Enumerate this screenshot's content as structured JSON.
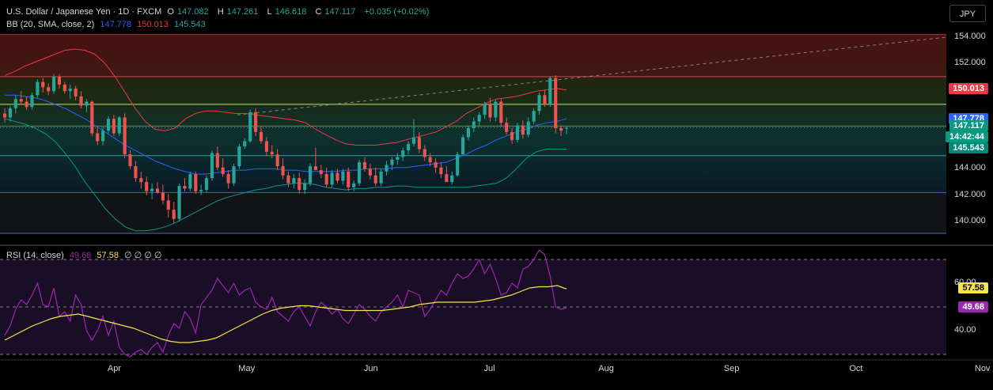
{
  "header": {
    "title": "U.S. Dollar / Japanese Yen · 1D · FXCM",
    "open_label": "O",
    "open": "147.082",
    "high_label": "H",
    "high": "147.261",
    "low_label": "L",
    "low": "146.618",
    "close_label": "C",
    "close": "147.117",
    "change": "+0.035 (+0.02%)",
    "bb_label": "BB (20, SMA, close, 2)",
    "bb_basis": "147.778",
    "bb_upper": "150.013",
    "bb_lower": "145.543",
    "rsi_label": "RSI (14, close)",
    "rsi_value": "49.68",
    "rsi_ma": "57.58",
    "rsi_extra": "∅ ∅ ∅ ∅"
  },
  "currency_button": "JPY",
  "price_axis": {
    "ticks": [
      "154.000",
      "152.000",
      "150.000",
      "144.000",
      "142.000",
      "140.000"
    ],
    "tick_values": [
      154,
      152,
      150,
      144,
      142,
      140
    ],
    "badges": {
      "upper": {
        "text": "150.013",
        "color": "#f23645"
      },
      "basis": {
        "text": "147.778",
        "color": "#2962ff"
      },
      "close": {
        "text": "147.117",
        "color": "#089981"
      },
      "countdown": {
        "text": "14:42:44",
        "color": "#089981"
      },
      "lower": {
        "text": "145.543",
        "color": "#00897b"
      }
    }
  },
  "rsi_axis": {
    "ticks": [
      "60.00",
      "40.00"
    ],
    "tick_values": [
      60,
      40
    ],
    "badges": {
      "ma": {
        "text": "57.58",
        "color": "#f7e34b"
      },
      "rsi": {
        "text": "49.68",
        "color": "#9c27b0"
      }
    }
  },
  "time_axis": {
    "labels": [
      "Apr",
      "May",
      "Jun",
      "Jul",
      "Aug",
      "Sep",
      "Oct",
      "Nov"
    ]
  },
  "chart_data": [
    {
      "type": "candlestick",
      "title": "U.S. Dollar / Japanese Yen · 1D · FXCM",
      "ylim": [
        138.5,
        154.6
      ],
      "colors": {
        "up": "#26a69a",
        "down": "#ef5350",
        "bb_upper": "#f23645",
        "bb_basis": "#2962ff",
        "bb_lower": "#089981"
      },
      "candles_ohlc": [
        [
          148.2,
          148.6,
          147.5,
          147.9
        ],
        [
          147.9,
          148.8,
          147.6,
          148.6
        ],
        [
          148.6,
          149.6,
          148.2,
          149.3
        ],
        [
          149.3,
          149.9,
          148.9,
          149.1
        ],
        [
          149.1,
          149.5,
          148.5,
          148.7
        ],
        [
          148.7,
          149.8,
          148.5,
          149.6
        ],
        [
          149.6,
          150.8,
          149.4,
          150.6
        ],
        [
          150.6,
          150.9,
          149.8,
          150.2
        ],
        [
          150.2,
          150.5,
          149.6,
          149.9
        ],
        [
          149.9,
          151.2,
          149.7,
          151.0
        ],
        [
          151.0,
          151.2,
          150.1,
          150.4
        ],
        [
          150.4,
          150.6,
          149.7,
          149.9
        ],
        [
          149.9,
          150.4,
          149.3,
          150.1
        ],
        [
          150.1,
          150.3,
          149.2,
          149.5
        ],
        [
          149.5,
          149.9,
          148.6,
          148.8
        ],
        [
          148.8,
          149.3,
          148.3,
          149.1
        ],
        [
          149.1,
          149.2,
          146.5,
          146.7
        ],
        [
          146.7,
          147.2,
          145.8,
          146.1
        ],
        [
          146.1,
          147.2,
          145.8,
          146.9
        ],
        [
          146.9,
          148.0,
          146.7,
          147.8
        ],
        [
          147.8,
          148.1,
          146.5,
          146.7
        ],
        [
          146.7,
          148.0,
          146.5,
          147.9
        ],
        [
          147.9,
          148.2,
          144.8,
          145.1
        ],
        [
          145.1,
          145.4,
          144.0,
          144.2
        ],
        [
          144.2,
          144.6,
          143.0,
          143.3
        ],
        [
          143.3,
          143.8,
          142.5,
          143.0
        ],
        [
          143.0,
          143.4,
          142.0,
          142.3
        ],
        [
          142.3,
          142.9,
          141.7,
          142.5
        ],
        [
          142.5,
          143.0,
          142.1,
          142.2
        ],
        [
          142.2,
          142.8,
          141.3,
          141.6
        ],
        [
          141.6,
          142.1,
          140.3,
          140.9
        ],
        [
          140.9,
          141.5,
          139.9,
          140.2
        ],
        [
          140.2,
          142.9,
          140.0,
          142.7
        ],
        [
          142.7,
          143.3,
          142.3,
          142.5
        ],
        [
          142.5,
          143.8,
          142.3,
          143.6
        ],
        [
          143.6,
          143.8,
          142.1,
          142.3
        ],
        [
          142.3,
          142.8,
          142.0,
          142.4
        ],
        [
          142.4,
          143.5,
          142.2,
          143.3
        ],
        [
          143.3,
          145.4,
          143.1,
          145.2
        ],
        [
          145.2,
          145.7,
          143.9,
          144.1
        ],
        [
          144.1,
          144.8,
          143.4,
          143.6
        ],
        [
          143.6,
          143.9,
          142.5,
          142.9
        ],
        [
          142.9,
          144.4,
          142.7,
          144.2
        ],
        [
          144.2,
          145.9,
          144.0,
          145.7
        ],
        [
          145.7,
          146.3,
          145.5,
          146.1
        ],
        [
          146.1,
          148.5,
          146.0,
          148.3
        ],
        [
          148.3,
          148.6,
          146.5,
          146.8
        ],
        [
          146.8,
          147.2,
          145.9,
          146.1
        ],
        [
          146.1,
          146.4,
          145.0,
          145.3
        ],
        [
          145.3,
          145.8,
          144.8,
          145.1
        ],
        [
          145.1,
          145.5,
          143.9,
          144.2
        ],
        [
          144.2,
          144.8,
          143.2,
          143.5
        ],
        [
          143.5,
          143.8,
          142.6,
          142.9
        ],
        [
          142.9,
          143.6,
          142.5,
          143.3
        ],
        [
          143.3,
          143.7,
          142.1,
          142.4
        ],
        [
          142.4,
          143.2,
          142.1,
          142.9
        ],
        [
          142.9,
          144.4,
          142.7,
          144.2
        ],
        [
          144.2,
          145.6,
          144.0,
          143.9
        ],
        [
          143.9,
          144.3,
          143.3,
          143.6
        ],
        [
          143.6,
          144.1,
          142.6,
          142.8
        ],
        [
          142.8,
          143.9,
          142.6,
          143.7
        ],
        [
          143.7,
          144.0,
          142.9,
          143.1
        ],
        [
          143.1,
          144.0,
          142.8,
          143.8
        ],
        [
          143.8,
          144.1,
          142.3,
          142.6
        ],
        [
          142.6,
          143.1,
          142.3,
          142.9
        ],
        [
          142.9,
          144.7,
          142.7,
          144.5
        ],
        [
          144.5,
          144.9,
          143.8,
          144.0
        ],
        [
          144.0,
          144.4,
          143.2,
          143.5
        ],
        [
          143.5,
          144.1,
          142.7,
          142.9
        ],
        [
          142.9,
          144.0,
          142.7,
          143.8
        ],
        [
          143.8,
          144.6,
          143.5,
          144.3
        ],
        [
          144.3,
          144.9,
          143.9,
          144.7
        ],
        [
          144.7,
          145.2,
          144.3,
          144.9
        ],
        [
          144.9,
          145.6,
          144.6,
          145.4
        ],
        [
          145.4,
          146.1,
          145.1,
          145.9
        ],
        [
          145.9,
          147.8,
          145.7,
          146.4
        ],
        [
          146.4,
          146.8,
          145.2,
          145.5
        ],
        [
          145.5,
          145.8,
          144.6,
          144.9
        ],
        [
          144.9,
          145.2,
          144.2,
          144.5
        ],
        [
          144.5,
          144.8,
          143.7,
          144.1
        ],
        [
          144.1,
          144.5,
          143.3,
          143.6
        ],
        [
          143.6,
          144.2,
          143.1,
          143.0
        ],
        [
          143.0,
          143.8,
          142.8,
          143.5
        ],
        [
          143.5,
          145.3,
          143.4,
          145.1
        ],
        [
          145.1,
          146.6,
          145.0,
          146.4
        ],
        [
          146.4,
          147.3,
          146.2,
          147.1
        ],
        [
          147.1,
          147.9,
          146.8,
          147.6
        ],
        [
          147.6,
          148.3,
          147.2,
          148.1
        ],
        [
          148.1,
          149.1,
          147.8,
          148.9
        ],
        [
          148.9,
          149.4,
          147.6,
          147.9
        ],
        [
          147.9,
          149.3,
          147.6,
          149.1
        ],
        [
          149.1,
          149.3,
          147.2,
          147.5
        ],
        [
          147.5,
          147.9,
          146.6,
          146.8
        ],
        [
          146.8,
          147.1,
          145.9,
          146.2
        ],
        [
          146.2,
          147.5,
          146.0,
          147.3
        ],
        [
          147.3,
          147.7,
          146.3,
          146.6
        ],
        [
          146.6,
          147.9,
          146.4,
          147.6
        ],
        [
          147.6,
          148.6,
          147.4,
          148.4
        ],
        [
          148.4,
          149.8,
          148.1,
          149.6
        ],
        [
          149.6,
          150.0,
          148.7,
          148.9
        ],
        [
          148.9,
          151.0,
          148.7,
          150.9
        ],
        [
          150.9,
          151.1,
          146.7,
          147.1
        ],
        [
          147.1,
          147.3,
          146.5,
          146.9
        ],
        [
          147.082,
          147.261,
          146.618,
          147.117
        ]
      ],
      "bollinger_upper": [
        151.1,
        151.4,
        151.8,
        152.1,
        152.4,
        152.7,
        153.0,
        153.1,
        153.0,
        152.7,
        152.0,
        151.0,
        149.8,
        148.6,
        147.6,
        147.0,
        146.9,
        147.1,
        147.8,
        148.2,
        148.4,
        148.4,
        148.3,
        148.2,
        148.2,
        148.1,
        148.0,
        147.9,
        147.8,
        147.7,
        147.5,
        147.0,
        146.6,
        146.2,
        145.9,
        145.8,
        145.8,
        145.8,
        145.9,
        146.0,
        146.2,
        146.4,
        146.6,
        146.8,
        147.2,
        147.6,
        148.2,
        148.6,
        149.0,
        149.3,
        149.4,
        149.5,
        149.7,
        149.9,
        150.0,
        150.1,
        150.0
      ],
      "bollinger_basis": [
        149.6,
        149.6,
        149.5,
        149.4,
        149.2,
        148.9,
        148.6,
        148.2,
        147.8,
        147.3,
        146.8,
        146.3,
        145.8,
        145.4,
        145.0,
        144.6,
        144.3,
        144.0,
        143.8,
        143.6,
        143.6,
        143.7,
        143.8,
        143.9,
        143.9,
        144.0,
        144.0,
        144.0,
        143.9,
        143.9,
        143.8,
        143.8,
        143.8,
        143.8,
        143.9,
        143.9,
        144.0,
        144.0,
        144.0,
        144.1,
        144.1,
        144.2,
        144.3,
        144.4,
        144.5,
        144.8,
        145.1,
        145.5,
        145.8,
        146.2,
        146.5,
        146.8,
        147.0,
        147.3,
        147.5,
        147.6,
        147.8
      ],
      "bollinger_lower": [
        147.8,
        147.6,
        147.4,
        147.1,
        146.7,
        146.1,
        145.2,
        144.2,
        143.0,
        142.0,
        141.0,
        140.2,
        139.6,
        139.3,
        139.3,
        139.4,
        139.6,
        139.9,
        140.3,
        140.7,
        141.1,
        141.5,
        141.8,
        142.0,
        142.2,
        142.4,
        142.5,
        142.7,
        142.8,
        142.9,
        142.9,
        142.8,
        142.6,
        142.5,
        142.4,
        142.5,
        142.5,
        142.6,
        142.6,
        142.7,
        142.7,
        142.6,
        142.6,
        142.6,
        142.6,
        142.6,
        142.6,
        142.7,
        142.8,
        142.9,
        143.3,
        144.0,
        144.8,
        145.3,
        145.5,
        145.5,
        145.5
      ],
      "last_close": 147.117
    },
    {
      "type": "line",
      "title": "RSI (14, close)",
      "ylim": [
        30,
        74
      ],
      "levels": [
        70,
        50,
        30
      ],
      "series": [
        {
          "name": "RSI",
          "color": "#9c27b0",
          "values": [
            38,
            42,
            49,
            53,
            51,
            55,
            60,
            51,
            50,
            58,
            46,
            48,
            44,
            55,
            51,
            40,
            36,
            40,
            46,
            38,
            44,
            33,
            30,
            29,
            31,
            32,
            30,
            33,
            35,
            31,
            38,
            43,
            41,
            48,
            45,
            39,
            51,
            54,
            57,
            62,
            59,
            56,
            60,
            55,
            57,
            58,
            52,
            50,
            49,
            54,
            48,
            46,
            44,
            48,
            50,
            46,
            42,
            48,
            52,
            50,
            47,
            49,
            45,
            43,
            47,
            51,
            49,
            46,
            44,
            48,
            50,
            52,
            55,
            50,
            57,
            56,
            55,
            46,
            49,
            53,
            57,
            55,
            60,
            64,
            62,
            63,
            66,
            70,
            64,
            68,
            62,
            55,
            56,
            60,
            58,
            66,
            67,
            70,
            74,
            72,
            63,
            50,
            49,
            49.68
          ]
        },
        {
          "name": "RSI-based MA",
          "color": "#f7e34b",
          "values": [
            36,
            38,
            40,
            42,
            43.5,
            45,
            46,
            46.5,
            47,
            46,
            45,
            44,
            43,
            42,
            41,
            39.5,
            38,
            36.5,
            35.5,
            35,
            35,
            35.5,
            36,
            37,
            39,
            41,
            43,
            45,
            47,
            48.5,
            49.5,
            50,
            50.5,
            50.5,
            50,
            49.5,
            49,
            48.5,
            48.5,
            48.5,
            48.5,
            48.5,
            49,
            49.5,
            50,
            51,
            51.5,
            52,
            52,
            52,
            52,
            52,
            52.5,
            53,
            54,
            55,
            56.5,
            58,
            58.5,
            58.5,
            59,
            57.58
          ]
        }
      ]
    }
  ]
}
